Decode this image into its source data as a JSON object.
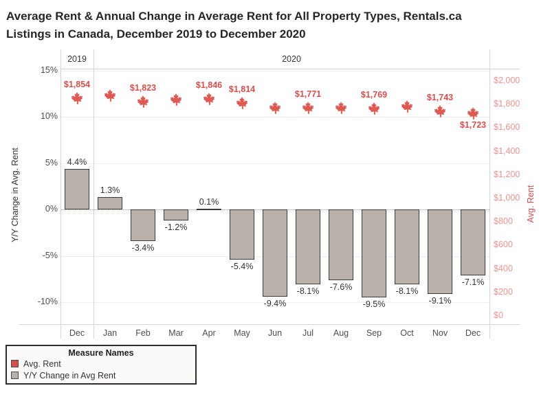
{
  "header": {
    "title_lines": [
      "Average Rent & Annual Change in Average Rent for All Property Types, Rentals.ca",
      "Listings in Canada, December 2019 to December 2020"
    ]
  },
  "colors": {
    "leaf_red": "#dd5a55",
    "label_red": "#d5504c",
    "tick_red": "#ef9490",
    "axis_title_red": "#c8504c",
    "bar_fill": "#bab1aa",
    "bar_border": "#3e3a36"
  },
  "chart_data": {
    "type": "combo-dual-axis (bar + maple-leaf point markers)",
    "categories": [
      "Dec",
      "Jan",
      "Feb",
      "Mar",
      "Apr",
      "May",
      "Jun",
      "Jul",
      "Aug",
      "Sep",
      "Oct",
      "Nov",
      "Dec"
    ],
    "year_groups": [
      {
        "label": "2019",
        "span": 1
      },
      {
        "label": "2020",
        "span": 12
      }
    ],
    "series": [
      {
        "name": "Avg. Rent",
        "type": "point",
        "marker": "maple-leaf",
        "axis": "right",
        "values": [
          1854,
          1880,
          1823,
          1845,
          1846,
          1814,
          1770,
          1771,
          1770,
          1769,
          1785,
          1743,
          1723
        ],
        "labels": [
          "$1,854",
          "",
          "$1,823",
          "",
          "$1,846",
          "$1,814",
          "",
          "$1,771",
          "",
          "$1,769",
          "",
          "$1,743",
          "$1,723"
        ],
        "label_below_indices": [
          12
        ],
        "unlabeled_points_estimated": true
      },
      {
        "name": "Y/Y Change in Avg Rent",
        "type": "bar",
        "axis": "left",
        "values": [
          4.4,
          1.3,
          -3.4,
          -1.2,
          0.1,
          -5.4,
          -9.4,
          -8.1,
          -7.6,
          -9.5,
          -8.1,
          -9.1,
          -7.1
        ],
        "labels": [
          "4.4%",
          "1.3%",
          "-3.4%",
          "-1.2%",
          "0.1%",
          "-5.4%",
          "-9.4%",
          "-8.1%",
          "-7.6%",
          "-9.5%",
          "-8.1%",
          "-9.1%",
          "-7.1%"
        ]
      }
    ],
    "left_axis": {
      "title": "Y/Y Change in Avg. Rent",
      "ticks": [
        "15%",
        "10%",
        "5%",
        "0%",
        "-5%",
        "-10%"
      ],
      "tick_values": [
        15,
        10,
        5,
        0,
        -5,
        -10
      ],
      "ylim": [
        -12.4,
        15.2
      ],
      "grid": true
    },
    "right_axis": {
      "title": "Avg. Rent",
      "ticks": [
        "$2,000",
        "$1,800",
        "$1,600",
        "$1,400",
        "$1,200",
        "$1,000",
        "$800",
        "$600",
        "$400",
        "$200",
        "$0"
      ],
      "tick_values": [
        2000,
        1800,
        1600,
        1400,
        1200,
        1000,
        800,
        600,
        400,
        200,
        0
      ],
      "ylim": [
        0,
        2000
      ],
      "grid": false
    }
  },
  "legend": {
    "title": "Measure Names",
    "items": [
      {
        "label": "Avg. Rent",
        "color": "#d5504c"
      },
      {
        "label": "Y/Y Change in Avg Rent",
        "color": "#bab1aa"
      }
    ]
  }
}
